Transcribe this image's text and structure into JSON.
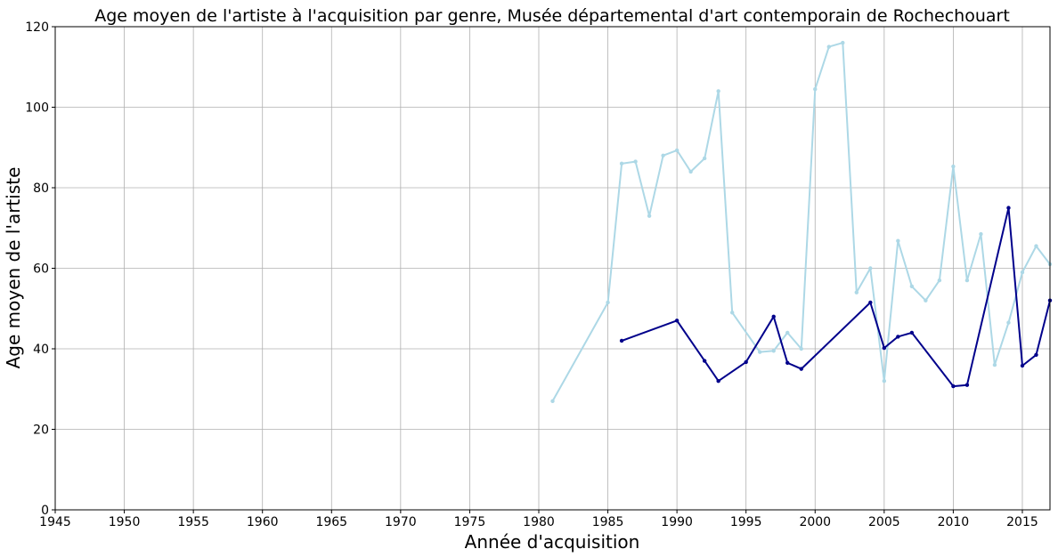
{
  "chart_data": {
    "type": "line",
    "title": "Age moyen de l'artiste à l'acquisition par genre, Musée départemental d'art contemporain de Rochechouart",
    "xlabel": "Année d'acquisition",
    "ylabel": "Age moyen de l'artiste",
    "xlim": [
      1945,
      2017
    ],
    "ylim": [
      0,
      120
    ],
    "x_ticks": [
      1945,
      1950,
      1955,
      1960,
      1965,
      1970,
      1975,
      1980,
      1985,
      1990,
      1995,
      2000,
      2005,
      2010,
      2015
    ],
    "y_ticks": [
      0,
      20,
      40,
      60,
      80,
      100,
      120
    ],
    "grid": true,
    "series": [
      {
        "color": "#add8e6",
        "x": [
          1981,
          1985,
          1986,
          1987,
          1988,
          1989,
          1990,
          1991,
          1992,
          1993,
          1994,
          1996,
          1997,
          1998,
          1999,
          2000,
          2001,
          2002,
          2003,
          2004,
          2005,
          2006,
          2007,
          2008,
          2009,
          2010,
          2011,
          2012,
          2013,
          2014,
          2015,
          2016,
          2017
        ],
        "y": [
          27,
          51.5,
          86,
          86.5,
          73,
          88,
          89.3,
          84,
          87.3,
          104,
          49,
          39.2,
          39.5,
          44,
          40,
          104.5,
          115,
          116,
          54,
          60,
          32,
          66.8,
          55.5,
          52,
          57,
          85.3,
          57,
          68.5,
          36,
          46.5,
          59,
          65.5,
          61
        ]
      },
      {
        "color": "#00008b",
        "x": [
          1986,
          1990,
          1992,
          1993,
          1995,
          1997,
          1998,
          1999,
          2004,
          2005,
          2006,
          2007,
          2010,
          2011,
          2014,
          2015,
          2016,
          2017
        ],
        "y": [
          42,
          47,
          37,
          32,
          36.7,
          48,
          36.5,
          35,
          51.5,
          40.2,
          43,
          44,
          30.7,
          31,
          75,
          35.8,
          38.5,
          52
        ]
      }
    ]
  }
}
